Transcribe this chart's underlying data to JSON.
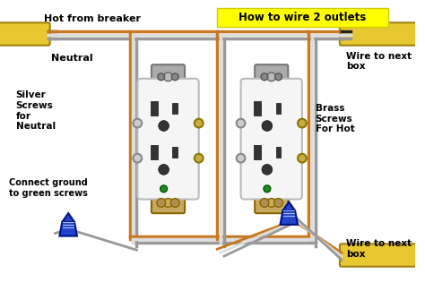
{
  "title": "How to wire 2 outlets",
  "title_bg": "#ffff00",
  "background_color": "#ffffff",
  "outlet_color": "#f0f0f0",
  "outlet_border": "#aaaaaa",
  "wire_black": "#222222",
  "wire_white": "#dddddd",
  "wire_copper": "#c87820",
  "wire_yellow": "#e8c830",
  "wire_gray": "#999999",
  "wire_blue": "#2244cc",
  "wire_green": "#228822",
  "label_color": "#000000",
  "text_hot_from_breaker": "Hot from breaker",
  "text_neutral": "Neutral",
  "text_silver": "Silver\nScrews\nfor\nNeutral",
  "text_ground": "Connect ground\nto green screws",
  "text_brass": "Brass\nScrews\nFor Hot",
  "text_wire_next1": "Wire to next\nbox",
  "text_wire_next2": "Wire to next\nbox"
}
